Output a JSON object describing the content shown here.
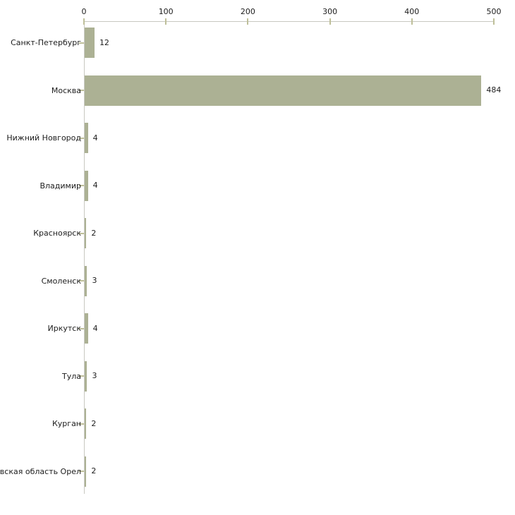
{
  "chart_data": {
    "type": "bar",
    "orientation": "horizontal",
    "title": "",
    "xlabel": "",
    "ylabel": "",
    "categories": [
      "Санкт-Петербург",
      "Москва",
      "Нижний Новгород",
      "Владимир",
      "Красноярск",
      "Смоленск",
      "Иркутск",
      "Тула",
      "Курган",
      "Орловская область Орел"
    ],
    "values": [
      12,
      484,
      4,
      4,
      2,
      3,
      4,
      3,
      2,
      2
    ],
    "value_labels": [
      "12",
      "484",
      "4",
      "4",
      "2",
      "3",
      "4",
      "3",
      "2",
      "2"
    ],
    "xticks": [
      0,
      100,
      200,
      300,
      400,
      500
    ],
    "xtick_labels": [
      "0",
      "100",
      "200",
      "300",
      "400",
      "500"
    ],
    "xlim": [
      0,
      500
    ],
    "grid": false,
    "legend": false,
    "axis_position": "top-left",
    "bar_color": "#acb194",
    "axis_line_color": "#c8c8c1",
    "tick_color": "#bebf99",
    "text_color": "#1c1c1c"
  }
}
